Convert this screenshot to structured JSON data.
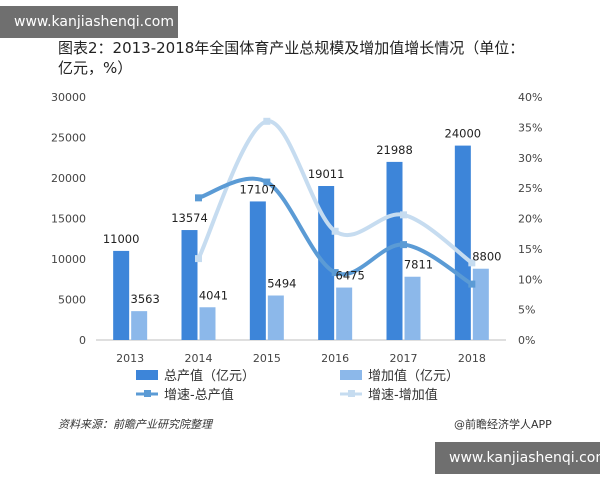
{
  "watermark_top": "www.kanjiashenqi.com",
  "watermark_bottom": "www.kanjiashenqi.com",
  "footer": {
    "source": "资料来源：前瞻产业研究院整理",
    "brand": "@前瞻经济学人APP"
  },
  "colors": {
    "bar_total": "#3d85d9",
    "bar_added": "#8cb8ea",
    "line_total": "#5b9bd5",
    "line_added": "#c6dcf0"
  },
  "chart_data": {
    "type": "bar",
    "title": "图表2：2013-2018年全国体育产业总规模及增加值增长情况（单位：亿元，%）",
    "categories": [
      "2013",
      "2014",
      "2015",
      "2016",
      "2017",
      "2018"
    ],
    "y_left_ticks": [
      "30000",
      "25000",
      "20000",
      "15000",
      "10000",
      "5000",
      "0"
    ],
    "y_right_ticks": [
      "40%",
      "35%",
      "30%",
      "25%",
      "20%",
      "15%",
      "10%",
      "5%",
      "0%"
    ],
    "ylim_left": [
      0,
      30000
    ],
    "ylim_right": [
      0,
      40
    ],
    "series": [
      {
        "name": "总产值（亿元）",
        "kind": "bar",
        "axis": "left",
        "values": [
          11000,
          13574,
          17107,
          19011,
          21988,
          24000
        ],
        "labels": [
          "11000",
          "13574",
          "17107",
          "19011",
          "21988",
          "24000"
        ]
      },
      {
        "name": "增加值（亿元）",
        "kind": "bar",
        "axis": "left",
        "values": [
          3563,
          4041,
          5494,
          6475,
          7811,
          8800
        ],
        "labels": [
          "3563",
          "4041",
          "5494",
          "6475",
          "7811",
          "8800"
        ]
      },
      {
        "name": "增速-总产值",
        "kind": "line",
        "axis": "right",
        "values": [
          null,
          23.4,
          26.0,
          11.1,
          15.7,
          9.2
        ]
      },
      {
        "name": "增速-增加值",
        "kind": "line",
        "axis": "right",
        "values": [
          null,
          13.4,
          36.0,
          17.9,
          20.6,
          12.7
        ]
      }
    ],
    "legend_position": "bottom",
    "grid": false
  }
}
